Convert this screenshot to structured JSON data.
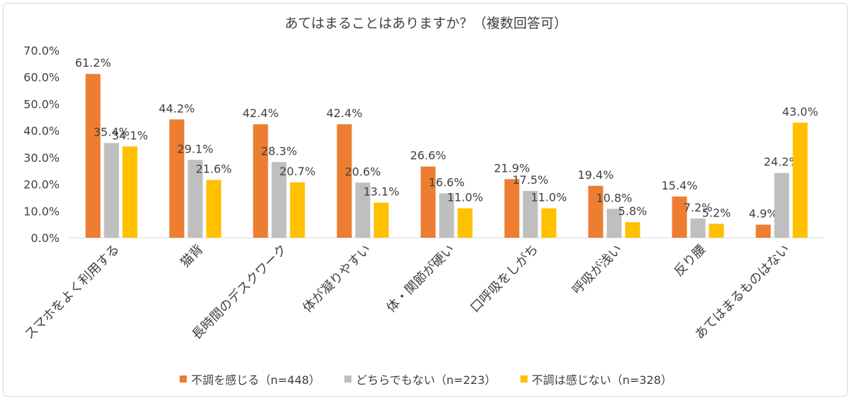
{
  "chart_data": {
    "type": "bar",
    "title": "あてはまることはありますか？（複数回答可）",
    "categories": [
      "スマホをよく利用する",
      "猫背",
      "長時間のデスクワーク",
      "体が凝りやすい",
      "体・関節が硬い",
      "口呼吸をしがち",
      "呼吸が浅い",
      "反り腰",
      "あてはまるものはない"
    ],
    "series": [
      {
        "name": "不調を感じる（n=448）",
        "color": "#ED7D31",
        "values": [
          61.2,
          44.2,
          42.4,
          42.4,
          26.6,
          21.9,
          19.4,
          15.4,
          4.9
        ]
      },
      {
        "name": "どちらでもない（n=223）",
        "color": "#BFBFBF",
        "values": [
          35.4,
          29.1,
          28.3,
          20.6,
          16.6,
          17.5,
          10.8,
          7.2,
          24.2
        ]
      },
      {
        "name": "不調は感じない（n=328）",
        "color": "#FFC000",
        "values": [
          34.1,
          21.6,
          20.7,
          13.1,
          11.0,
          11.0,
          5.8,
          5.2,
          43.0
        ]
      }
    ],
    "yticks": [
      "0.0%",
      "10.0%",
      "20.0%",
      "30.0%",
      "40.0%",
      "50.0%",
      "60.0%",
      "70.0%"
    ],
    "ylim": [
      0,
      70
    ],
    "grid": false,
    "legend_position": "bottom"
  }
}
